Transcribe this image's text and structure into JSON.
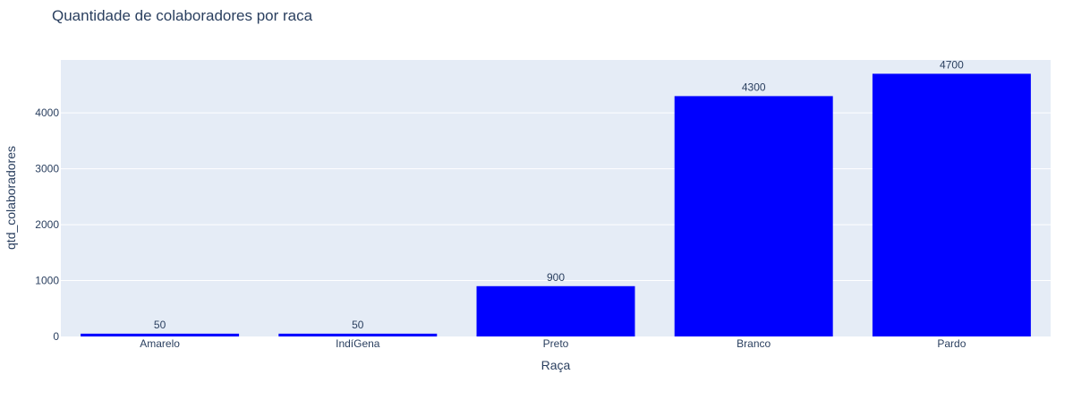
{
  "colors": {
    "plot_background": "#E5ECF6",
    "bar_fill": "#0000FF",
    "text": "#2a3f5f",
    "grid": "#FFFFFF"
  },
  "chart_data": {
    "type": "bar",
    "title": "Quantidade de colaboradores por raca",
    "xlabel": "Raça",
    "ylabel": "qtd_colaboradores",
    "categories": [
      "Amarelo",
      "IndíGena",
      "Preto",
      "Branco",
      "Pardo"
    ],
    "values": [
      50,
      50,
      900,
      4300,
      4700
    ],
    "data_labels": [
      "50",
      "50",
      "900",
      "4300",
      "4700"
    ],
    "yticks": [
      0,
      1000,
      2000,
      3000,
      4000
    ],
    "ytick_labels": [
      "0",
      "1000",
      "2000",
      "3000",
      "4000"
    ],
    "ylim": [
      0,
      4947
    ],
    "grid": true,
    "legend": false
  }
}
